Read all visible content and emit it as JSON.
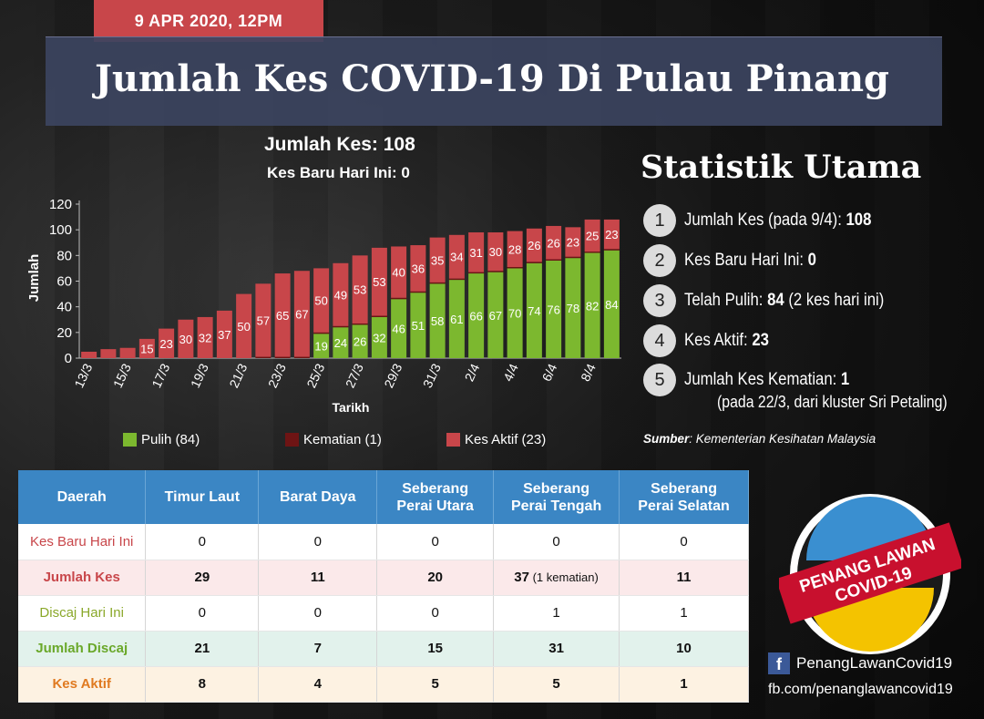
{
  "header": {
    "date": "9 APR 2020, 12PM",
    "title": "Jumlah Kes COVID-19 Di Pulau Pinang"
  },
  "chart_header": {
    "total": "Jumlah Kes: 108",
    "new_today": "Kes Baru Hari Ini: 0"
  },
  "colors": {
    "recovered": "#7cb82f",
    "deaths": "#6e1414",
    "active": "#c8464a",
    "table_header": "#3b86c4",
    "title_bar": "#3c4460",
    "date_tab": "#c8464a"
  },
  "chart_data": {
    "type": "bar",
    "stacked": true,
    "xlabel": "Tarikh",
    "ylabel": "Jumlah",
    "ylim": [
      0,
      120
    ],
    "yticks": [
      0,
      20,
      40,
      60,
      80,
      100,
      120
    ],
    "x_tick_labels": [
      "13/3",
      "15/3",
      "17/3",
      "19/3",
      "21/3",
      "23/3",
      "25/3",
      "27/3",
      "29/3",
      "31/3",
      "2/4",
      "4/4",
      "6/4",
      "8/4"
    ],
    "categories": [
      "13/3",
      "14/3",
      "15/3",
      "16/3",
      "17/3",
      "18/3",
      "19/3",
      "20/3",
      "21/3",
      "22/3",
      "23/3",
      "24/3",
      "25/3",
      "26/3",
      "27/3",
      "28/3",
      "29/3",
      "30/3",
      "31/3",
      "1/4",
      "2/4",
      "3/4",
      "4/4",
      "5/4",
      "6/4",
      "7/4",
      "8/4",
      "9/4"
    ],
    "series": [
      {
        "name": "Pulih (84)",
        "color": "#7cb82f",
        "values": [
          0,
          0,
          0,
          0,
          0,
          0,
          0,
          0,
          0,
          0,
          0,
          0,
          19,
          24,
          26,
          32,
          46,
          51,
          58,
          61,
          66,
          67,
          70,
          74,
          76,
          78,
          82,
          84
        ]
      },
      {
        "name": "Kematian (1)",
        "color": "#6e1414",
        "values": [
          0,
          0,
          0,
          0,
          0,
          0,
          0,
          0,
          0,
          1,
          1,
          1,
          1,
          1,
          1,
          1,
          1,
          1,
          1,
          1,
          1,
          1,
          1,
          1,
          1,
          1,
          1,
          1
        ]
      },
      {
        "name": "Kes Aktif (23)",
        "color": "#c8464a",
        "values": [
          5,
          7,
          8,
          15,
          23,
          30,
          32,
          37,
          50,
          57,
          65,
          67,
          50,
          49,
          53,
          53,
          40,
          36,
          35,
          34,
          31,
          30,
          28,
          26,
          26,
          23,
          25,
          23
        ]
      }
    ],
    "labels_recovered": [
      "",
      "",
      "",
      "",
      "",
      "",
      "",
      "",
      "",
      "",
      "",
      "",
      "19",
      "24",
      "26",
      "32",
      "46",
      "51",
      "58",
      "61",
      "66",
      "67",
      "70",
      "74",
      "76",
      "78",
      "82",
      "84"
    ],
    "labels_active": [
      "",
      "",
      "",
      "15",
      "23",
      "30",
      "32",
      "37",
      "50",
      "57",
      "65",
      "67",
      "50",
      "49",
      "53",
      "53",
      "40",
      "36",
      "35",
      "34",
      "31",
      "30",
      "28",
      "26",
      "26",
      "23",
      "25",
      "23"
    ],
    "legend": [
      "Pulih (84)",
      "Kematian (1)",
      "Kes Aktif (23)"
    ],
    "grid": false,
    "legend_position": "bottom"
  },
  "stats": {
    "title": "Statistik Utama",
    "items": [
      {
        "num": "1",
        "label": "Jumlah Kes (pada 9/4): ",
        "value": "108",
        "extra": ""
      },
      {
        "num": "2",
        "label": "Kes Baru Hari Ini: ",
        "value": "0",
        "extra": ""
      },
      {
        "num": "3",
        "label": "Telah Pulih: ",
        "value": "84",
        "extra": " (2 kes hari ini)"
      },
      {
        "num": "4",
        "label": "Kes Aktif: ",
        "value": "23",
        "extra": ""
      },
      {
        "num": "5",
        "label": "Jumlah Kes Kematian: ",
        "value": "1",
        "extra": ""
      }
    ],
    "item5_sub": "(pada 22/3, dari kluster Sri Petaling)",
    "source_label": "Sumber",
    "source_text": ": Kementerian Kesihatan Malaysia"
  },
  "table": {
    "headers": [
      "Daerah",
      "Timur Laut",
      "Barat Daya",
      "Seberang\nPerai Utara",
      "Seberang\nPerai Tengah",
      "Seberang\nPerai Selatan"
    ],
    "rows": [
      {
        "label": "Kes Baru Hari Ini",
        "label_color": "#c8464a",
        "values": [
          "0",
          "0",
          "0",
          "0",
          "0"
        ]
      },
      {
        "label": "Jumlah Kes",
        "label_color": "#c8464a",
        "values": [
          "29",
          "11",
          "20",
          "37",
          "11"
        ],
        "note": " (1 kematian)"
      },
      {
        "label": "Discaj Hari Ini",
        "label_color": "#8aa82a",
        "values": [
          "0",
          "0",
          "0",
          "1",
          "1"
        ]
      },
      {
        "label": "Jumlah Discaj",
        "label_color": "#6aa82a",
        "values": [
          "21",
          "7",
          "15",
          "31",
          "10"
        ]
      },
      {
        "label": "Kes Aktif",
        "label_color": "#e07a20",
        "values": [
          "8",
          "4",
          "5",
          "5",
          "1"
        ]
      }
    ]
  },
  "logo": {
    "line1": "PENANG LAWAN",
    "line2": "COVID-19"
  },
  "social": {
    "fb_name": "PenangLawanCovid19",
    "fb_url": "fb.com/penanglawancovid19",
    "fb_icon": "facebook-icon"
  }
}
